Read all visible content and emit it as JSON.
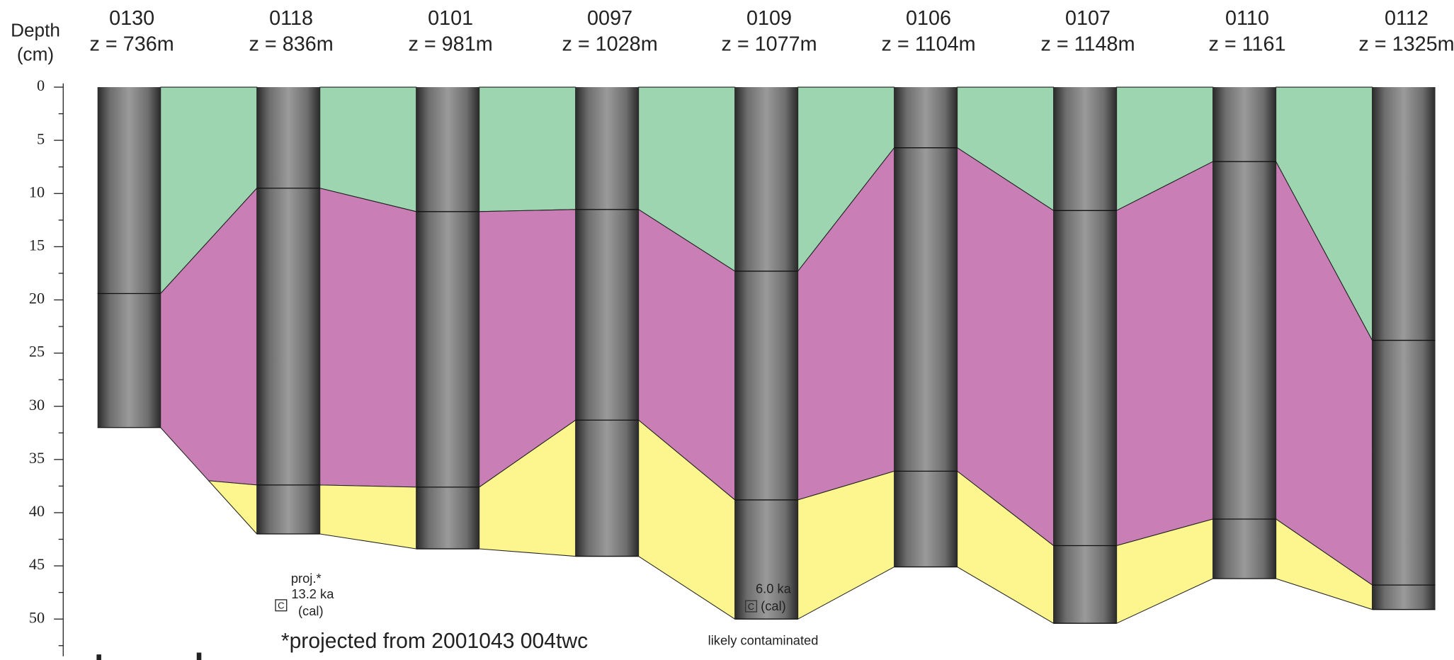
{
  "chart_data": {
    "type": "core-section",
    "y_label_lines": [
      "Depth",
      "(cm)"
    ],
    "ylim": [
      0,
      53.5
    ],
    "yticks": [
      0,
      5,
      10,
      15,
      20,
      25,
      30,
      35,
      40,
      45,
      50
    ],
    "unit_colors": [
      "#9dd5b0",
      "#c97fb5",
      "#fdf58d"
    ],
    "pinch_depth": 37.0,
    "cores": [
      {
        "name": "0130",
        "elevation": "z = 736m",
        "boundaries": [
          19.4,
          null
        ],
        "bottom": 32.0
      },
      {
        "name": "0118",
        "elevation": "z = 836m",
        "boundaries": [
          9.5,
          37.4
        ],
        "bottom": 42.0
      },
      {
        "name": "0101",
        "elevation": "z = 981m",
        "boundaries": [
          11.7,
          37.6
        ],
        "bottom": 43.4
      },
      {
        "name": "0097",
        "elevation": "z = 1028m",
        "boundaries": [
          11.5,
          31.3
        ],
        "bottom": 44.1
      },
      {
        "name": "0109",
        "elevation": "z = 1077m",
        "boundaries": [
          17.3,
          38.8
        ],
        "bottom": 50.0
      },
      {
        "name": "0106",
        "elevation": "z = 1104m",
        "boundaries": [
          5.7,
          36.1
        ],
        "bottom": 45.1
      },
      {
        "name": "0107",
        "elevation": "z = 1148m",
        "boundaries": [
          11.6,
          43.1
        ],
        "bottom": 50.4
      },
      {
        "name": "0110",
        "elevation": "z = 1161",
        "boundaries": [
          7.0,
          40.6
        ],
        "bottom": 46.2
      },
      {
        "name": "0112",
        "elevation": "z = 1325m",
        "boundaries": [
          23.8,
          46.8
        ],
        "bottom": 49.1
      }
    ],
    "annotations": {
      "proj": "proj.*",
      "age1": "13.2 ka",
      "cal1": "(cal)",
      "c1": "C",
      "age2": "6.0 ka",
      "cal2": "(cal)",
      "c2": "C",
      "footnote": "*projected from 2001043 004twc",
      "contaminated": "likely contaminated"
    }
  }
}
